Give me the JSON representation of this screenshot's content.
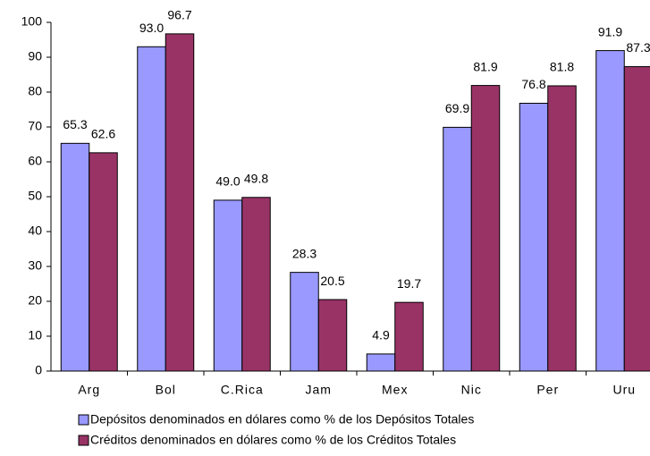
{
  "chart_data": {
    "type": "bar",
    "categories": [
      "Arg",
      "Bol",
      "C.Rica",
      "Jam",
      "Mex",
      "Nic",
      "Per",
      "Uru"
    ],
    "series": [
      {
        "name": "Depósitos denominados en dólares como % de los Depósitos Totales",
        "color": "#9999ff",
        "values": [
          65.3,
          93.0,
          49.0,
          28.3,
          4.9,
          69.9,
          76.8,
          91.9
        ],
        "value_labels": [
          "65.3",
          "93.0",
          "49.0",
          "28.3",
          "4.9",
          "69.9",
          "76.8",
          "91.9"
        ]
      },
      {
        "name": "Créditos denominados en dólares como % de los Créditos Totales",
        "color": "#993366",
        "values": [
          62.6,
          96.7,
          49.8,
          20.5,
          19.7,
          81.9,
          81.8,
          87.3
        ],
        "value_labels": [
          "62.6",
          "96.7",
          "49.8",
          "20.5",
          "19.7",
          "81.9",
          "81.8",
          "87.3"
        ]
      }
    ],
    "ylim": [
      0,
      100
    ],
    "yticks": [
      0,
      10,
      20,
      30,
      40,
      50,
      60,
      70,
      80,
      90,
      100
    ],
    "grid": false
  }
}
